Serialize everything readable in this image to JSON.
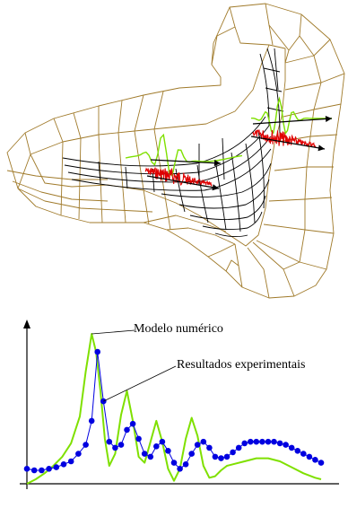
{
  "colors": {
    "mesh_outer": "#a07a2a",
    "mesh_inner": "#000000",
    "numeric_curve": "#7fe000",
    "experimental_curve": "#0000e0",
    "noise_signal": "#e00000",
    "axes": "#000000"
  },
  "labels": {
    "numeric_model": "Modelo numérico",
    "experimental_results": "Resultados experimentais"
  },
  "chart_data": {
    "type": "line",
    "series": [
      {
        "name": "Modelo numérico",
        "x": [
          0,
          0.03,
          0.06,
          0.09,
          0.12,
          0.15,
          0.18,
          0.2,
          0.22,
          0.235,
          0.25,
          0.265,
          0.28,
          0.3,
          0.32,
          0.34,
          0.36,
          0.38,
          0.4,
          0.42,
          0.44,
          0.46,
          0.48,
          0.5,
          0.52,
          0.54,
          0.56,
          0.58,
          0.6,
          0.62,
          0.64,
          0.66,
          0.68,
          0.7,
          0.74,
          0.78,
          0.82,
          0.86,
          0.9,
          0.94,
          0.98,
          1.0
        ],
        "y": [
          0.0,
          0.03,
          0.07,
          0.12,
          0.18,
          0.27,
          0.45,
          0.75,
          1.0,
          0.88,
          0.62,
          0.3,
          0.12,
          0.2,
          0.46,
          0.62,
          0.42,
          0.18,
          0.14,
          0.28,
          0.42,
          0.28,
          0.1,
          0.02,
          0.1,
          0.3,
          0.44,
          0.32,
          0.12,
          0.04,
          0.05,
          0.09,
          0.12,
          0.13,
          0.15,
          0.17,
          0.17,
          0.15,
          0.11,
          0.07,
          0.04,
          0.03
        ]
      },
      {
        "name": "Resultados experimentais",
        "x": [
          0,
          0.025,
          0.05,
          0.075,
          0.1,
          0.125,
          0.15,
          0.175,
          0.2,
          0.22,
          0.24,
          0.26,
          0.28,
          0.3,
          0.32,
          0.34,
          0.36,
          0.38,
          0.4,
          0.42,
          0.44,
          0.46,
          0.48,
          0.5,
          0.52,
          0.54,
          0.56,
          0.58,
          0.6,
          0.62,
          0.64,
          0.66,
          0.68,
          0.7,
          0.72,
          0.74,
          0.76,
          0.78,
          0.8,
          0.82,
          0.84,
          0.86,
          0.88,
          0.9,
          0.92,
          0.94,
          0.96,
          0.98,
          1.0
        ],
        "y": [
          0.1,
          0.09,
          0.09,
          0.1,
          0.11,
          0.13,
          0.15,
          0.2,
          0.26,
          0.42,
          0.88,
          0.55,
          0.28,
          0.24,
          0.26,
          0.36,
          0.4,
          0.3,
          0.2,
          0.18,
          0.25,
          0.28,
          0.22,
          0.14,
          0.1,
          0.13,
          0.2,
          0.26,
          0.28,
          0.24,
          0.18,
          0.17,
          0.18,
          0.21,
          0.24,
          0.27,
          0.28,
          0.28,
          0.28,
          0.28,
          0.28,
          0.27,
          0.26,
          0.24,
          0.22,
          0.2,
          0.18,
          0.16,
          0.14
        ]
      }
    ],
    "xlabel": "",
    "ylabel": "",
    "grid": false
  }
}
